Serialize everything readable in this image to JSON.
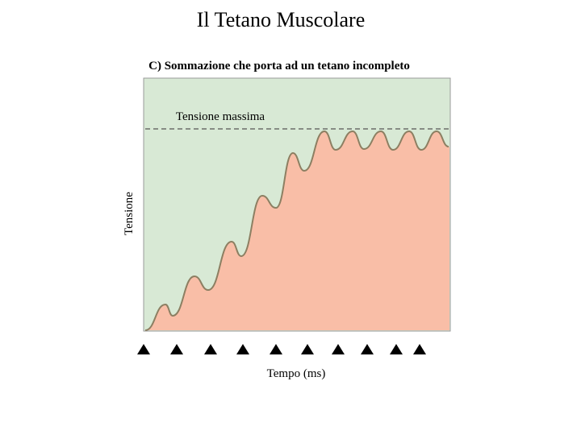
{
  "header": {
    "title": "Il Tetano Muscolare"
  },
  "diagram": {
    "subtitle": "C) Sommazione che porta ad un tetano incompleto",
    "max_label": "Tensione massima",
    "y_label": "Tensione",
    "x_label": "Tempo (ms)"
  }
}
